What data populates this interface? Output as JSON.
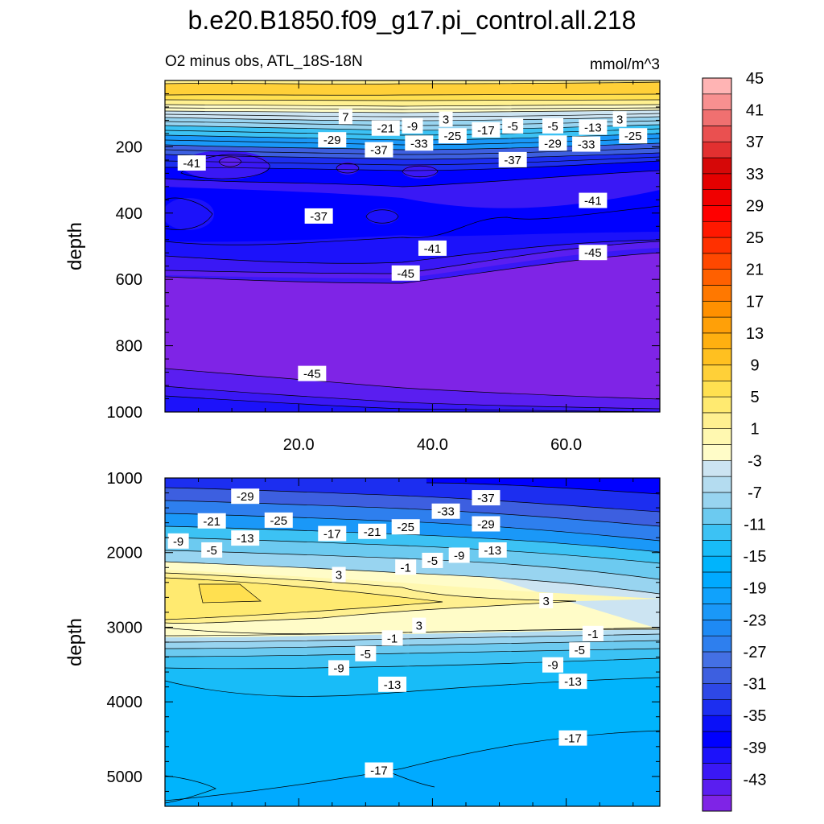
{
  "figure": {
    "title": "b.e20.B1850.f09_g17.pi_control.all.218",
    "subtitle_left": "O2 minus obs, ATL_18S-18N",
    "subtitle_right": "mmol/m^3"
  },
  "chart_data": [
    {
      "type": "contour",
      "panel": "upper",
      "xlabel": "",
      "ylabel": "depth",
      "xlim": [
        0,
        74
      ],
      "ylim": [
        1000,
        0
      ],
      "xticks": [
        20,
        40,
        60
      ],
      "xtick_labels": [
        "20.0",
        "40.0",
        "60.0"
      ],
      "yticks": [
        200,
        400,
        600,
        800,
        1000
      ],
      "ytick_labels": [
        "200",
        "400",
        "600",
        "800",
        "1000"
      ],
      "contour_labels": [
        {
          "text": "7",
          "x": 27,
          "y": 110
        },
        {
          "text": "3",
          "x": 42,
          "y": 118
        },
        {
          "text": "3",
          "x": 68,
          "y": 118
        },
        {
          "text": "-21",
          "x": 33,
          "y": 145
        },
        {
          "text": "-9",
          "x": 37,
          "y": 138
        },
        {
          "text": "-5",
          "x": 52,
          "y": 138
        },
        {
          "text": "-5",
          "x": 58,
          "y": 138
        },
        {
          "text": "-13",
          "x": 64,
          "y": 142
        },
        {
          "text": "-17",
          "x": 48,
          "y": 150
        },
        {
          "text": "-25",
          "x": 43,
          "y": 168
        },
        {
          "text": "-25",
          "x": 70,
          "y": 168
        },
        {
          "text": "-29",
          "x": 25,
          "y": 180
        },
        {
          "text": "-29",
          "x": 58,
          "y": 190
        },
        {
          "text": "-33",
          "x": 38,
          "y": 190
        },
        {
          "text": "-33",
          "x": 63,
          "y": 193
        },
        {
          "text": "-37",
          "x": 32,
          "y": 210
        },
        {
          "text": "-37",
          "x": 52,
          "y": 240
        },
        {
          "text": "-41",
          "x": 4,
          "y": 250
        },
        {
          "text": "-41",
          "x": 64,
          "y": 363
        },
        {
          "text": "-37",
          "x": 23,
          "y": 410
        },
        {
          "text": "-41",
          "x": 40,
          "y": 507
        },
        {
          "text": "-45",
          "x": 64,
          "y": 520
        },
        {
          "text": "-45",
          "x": 36,
          "y": 582
        },
        {
          "text": "-45",
          "x": 22,
          "y": 885
        }
      ]
    },
    {
      "type": "contour",
      "panel": "lower",
      "xlabel": "",
      "ylabel": "depth",
      "xlim": [
        0,
        74
      ],
      "ylim": [
        5400,
        1000
      ],
      "xticks": [
        20,
        40,
        60
      ],
      "yticks": [
        1000,
        2000,
        3000,
        4000,
        5000
      ],
      "ytick_labels": [
        "1000",
        "2000",
        "3000",
        "4000",
        "5000"
      ],
      "contour_labels": [
        {
          "text": "-29",
          "x": 12,
          "y": 1250
        },
        {
          "text": "-37",
          "x": 48,
          "y": 1270
        },
        {
          "text": "-33",
          "x": 42,
          "y": 1450
        },
        {
          "text": "-25",
          "x": 17,
          "y": 1570
        },
        {
          "text": "-21",
          "x": 7,
          "y": 1580
        },
        {
          "text": "-29",
          "x": 48,
          "y": 1620
        },
        {
          "text": "-25",
          "x": 36,
          "y": 1660
        },
        {
          "text": "-21",
          "x": 31,
          "y": 1720
        },
        {
          "text": "-17",
          "x": 25,
          "y": 1750
        },
        {
          "text": "-13",
          "x": 12,
          "y": 1810
        },
        {
          "text": "-9",
          "x": 2,
          "y": 1850
        },
        {
          "text": "-5",
          "x": 7,
          "y": 1970
        },
        {
          "text": "-13",
          "x": 49,
          "y": 1970
        },
        {
          "text": "-9",
          "x": 44,
          "y": 2040
        },
        {
          "text": "-5",
          "x": 40,
          "y": 2110
        },
        {
          "text": "-1",
          "x": 36,
          "y": 2200
        },
        {
          "text": "3",
          "x": 26,
          "y": 2300
        },
        {
          "text": "3",
          "x": 57,
          "y": 2650
        },
        {
          "text": "3",
          "x": 38,
          "y": 2980
        },
        {
          "text": "-1",
          "x": 34,
          "y": 3150
        },
        {
          "text": "-1",
          "x": 64,
          "y": 3090
        },
        {
          "text": "-5",
          "x": 30,
          "y": 3360
        },
        {
          "text": "-5",
          "x": 62,
          "y": 3310
        },
        {
          "text": "-9",
          "x": 26,
          "y": 3550
        },
        {
          "text": "-9",
          "x": 58,
          "y": 3510
        },
        {
          "text": "-13",
          "x": 34,
          "y": 3770
        },
        {
          "text": "-13",
          "x": 61,
          "y": 3730
        },
        {
          "text": "-17",
          "x": 61,
          "y": 4490
        },
        {
          "text": "-17",
          "x": 32,
          "y": 4920
        }
      ]
    },
    {
      "type": "colorbar",
      "levels": [
        -45,
        -43,
        -41,
        -39,
        -37,
        -35,
        -33,
        -31,
        -29,
        -27,
        -25,
        -23,
        -21,
        -19,
        -17,
        -15,
        -13,
        -11,
        -9,
        -7,
        -5,
        -3,
        -1,
        1,
        3,
        5,
        7,
        9,
        11,
        13,
        15,
        17,
        19,
        21,
        23,
        25,
        27,
        29,
        31,
        33,
        35,
        37,
        39,
        41,
        43,
        45
      ],
      "labeled_levels": [
        "45",
        "41",
        "37",
        "33",
        "29",
        "25",
        "21",
        "17",
        "13",
        "9",
        "5",
        "1",
        "-3",
        "-7",
        "-11",
        "-15",
        "-19",
        "-23",
        "-27",
        "-31",
        "-35",
        "-39",
        "-43"
      ],
      "colors_bottom_to_top": [
        "#7f24e6",
        "#5a1ef0",
        "#3a18f5",
        "#1c12fa",
        "#0000ff",
        "#0a10f8",
        "#1c2ef0",
        "#2e48e6",
        "#3d5fe0",
        "#4470e4",
        "#2e7fee",
        "#1e8af4",
        "#1a98f8",
        "#10a2fc",
        "#00aaff",
        "#00b4fc",
        "#18bcf8",
        "#3cc2f4",
        "#6ccaf0",
        "#98d4f0",
        "#b4dcf0",
        "#cce4f2",
        "#fffcc8",
        "#fff8b0",
        "#fff090",
        "#ffea70",
        "#ffe050",
        "#ffd038",
        "#ffc020",
        "#ffb010",
        "#ffa008",
        "#ff9000",
        "#ff7800",
        "#ff6000",
        "#ff4800",
        "#ff3000",
        "#ff1800",
        "#ff0000",
        "#f00000",
        "#e40000",
        "#d60808",
        "#e23030",
        "#ea5050",
        "#f07070",
        "#f89090",
        "#ffb4b4"
      ]
    }
  ]
}
